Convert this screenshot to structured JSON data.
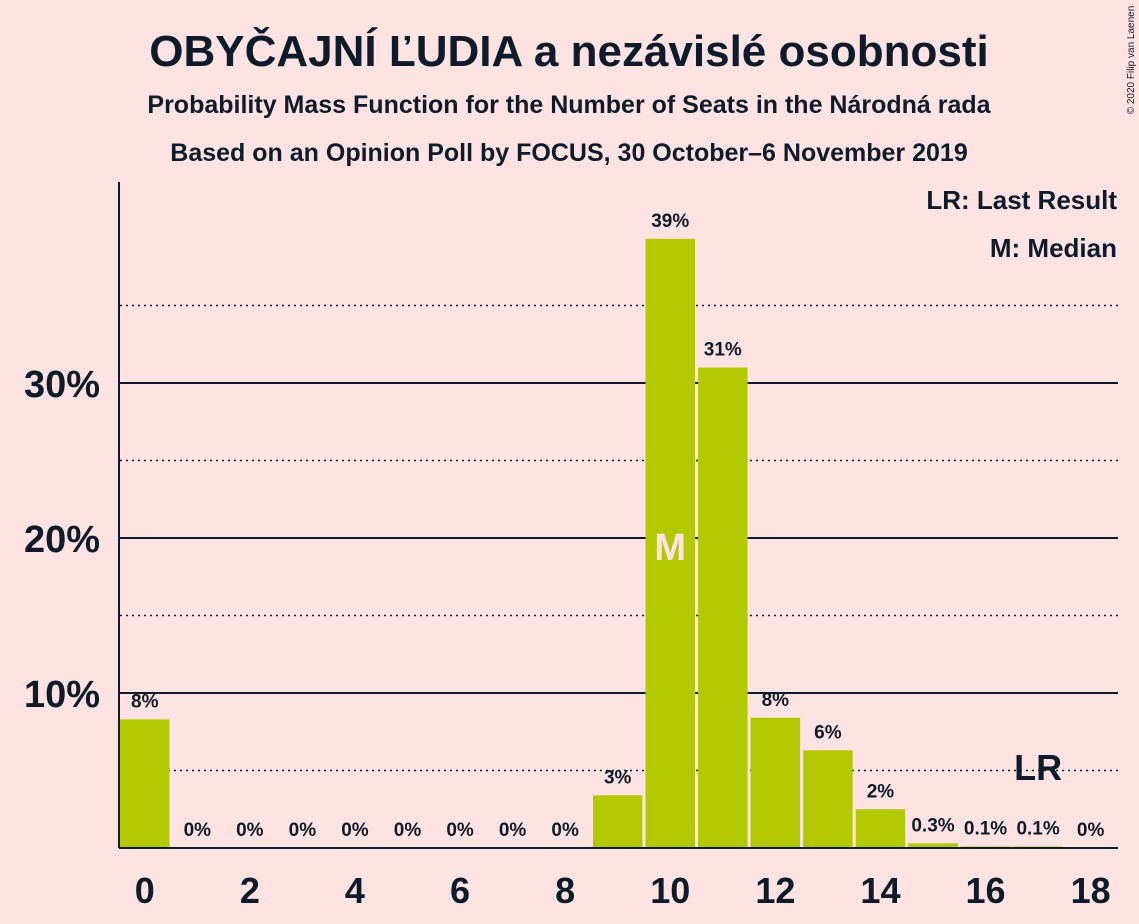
{
  "chart_data": {
    "type": "bar",
    "title": "OBYČAJNÍ ĽUDIA a nezávislé osobnosti",
    "subtitle": "Probability Mass Function for the Number of Seats in the Národná rada",
    "subtitle2": "Based on an Opinion Poll by FOCUS, 30 October–6 November 2019",
    "copyright": "© 2020 Filip van Laenen",
    "legend": [
      "LR: Last Result",
      "M: Median"
    ],
    "x": [
      0,
      1,
      2,
      3,
      4,
      5,
      6,
      7,
      8,
      9,
      10,
      11,
      12,
      13,
      14,
      15,
      16,
      17,
      18
    ],
    "x_tick_labels": [
      "0",
      "2",
      "4",
      "6",
      "8",
      "10",
      "12",
      "14",
      "16",
      "18"
    ],
    "values": [
      8.3,
      0,
      0,
      0,
      0,
      0,
      0,
      0,
      0,
      3.4,
      39.3,
      31.0,
      8.4,
      6.3,
      2.5,
      0.3,
      0.1,
      0.1,
      0
    ],
    "value_labels": [
      "8%",
      "0%",
      "0%",
      "0%",
      "0%",
      "0%",
      "0%",
      "0%",
      "0%",
      "3%",
      "39%",
      "31%",
      "8%",
      "6%",
      "2%",
      "0.3%",
      "0.1%",
      "0.1%",
      "0%"
    ],
    "y_tick_labels": [
      "10%",
      "20%",
      "30%"
    ],
    "ylim": [
      0,
      43
    ],
    "median_seat": 10,
    "median_label": "M",
    "last_result_seat": 17,
    "last_result_label": "LR",
    "bar_color": "#b2c800",
    "background": "#ffe3e3",
    "grid": "solid at 10% steps, dotted at 5% steps",
    "legend_position": "top-right"
  }
}
